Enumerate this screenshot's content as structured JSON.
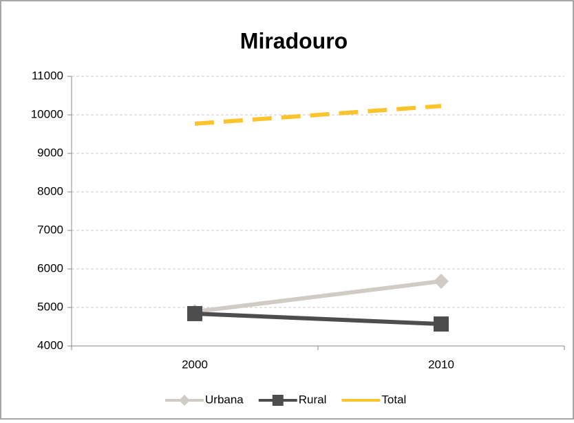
{
  "chart_data": {
    "type": "line",
    "title": "Miradouro",
    "categories": [
      "2000",
      "2010"
    ],
    "series": [
      {
        "name": "Urbana",
        "color": "#d0cbc4",
        "marker": "diamond",
        "values": [
          4890,
          5680
        ]
      },
      {
        "name": "Rural",
        "color": "#4d4d4d",
        "marker": "square",
        "values": [
          4840,
          4570
        ]
      },
      {
        "name": "Total",
        "color": "#fcc42c",
        "dashed": true,
        "values": [
          9770,
          10230
        ]
      }
    ],
    "ylim": [
      4000,
      11000
    ],
    "yticks": [
      4000,
      5000,
      6000,
      7000,
      8000,
      9000,
      10000,
      11000
    ],
    "grid": true,
    "legend": "bottom"
  }
}
